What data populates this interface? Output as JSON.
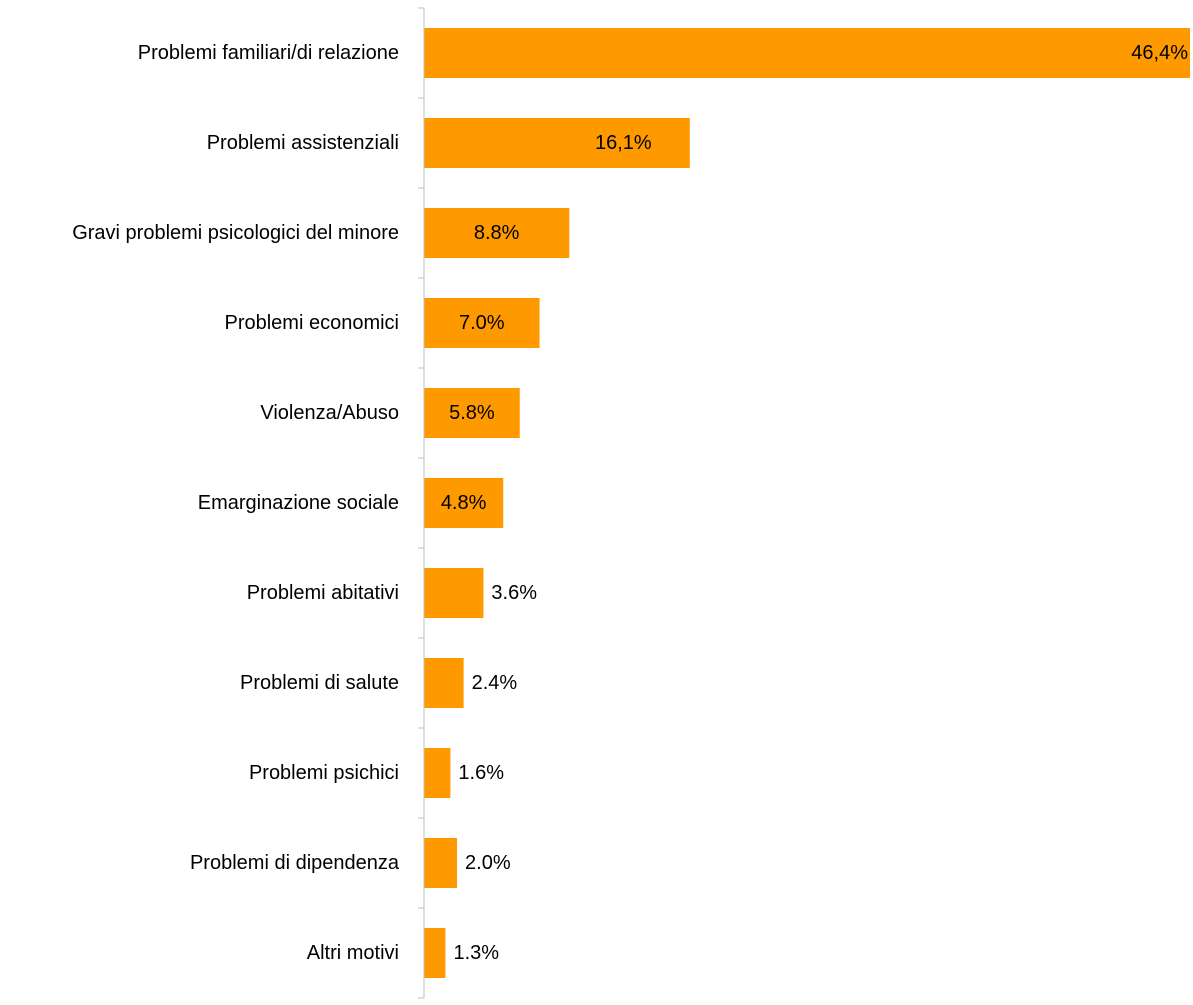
{
  "chart_data": {
    "type": "bar",
    "orientation": "horizontal",
    "title": "",
    "xlabel": "",
    "ylabel": "",
    "categories": [
      "Problemi familiari/di relazione",
      "Problemi assistenziali",
      "Gravi problemi psicologici del minore",
      "Problemi economici",
      "Violenza/Abuso",
      "Emarginazione sociale",
      "Problemi abitativi",
      "Problemi di salute",
      "Problemi psichici",
      "Problemi di dipendenza",
      "Altri motivi"
    ],
    "values": [
      46.4,
      16.1,
      8.8,
      7.0,
      5.8,
      4.8,
      3.6,
      2.4,
      1.6,
      2.0,
      1.3
    ],
    "value_labels": [
      "46,4%",
      "16,1%",
      "8.8%",
      "7.0%",
      "5.8%",
      "4.8%",
      "3.6%",
      "2.4%",
      "1.6%",
      "2.0%",
      "1.3%"
    ],
    "unit": "%",
    "bar_color": "#ff9900",
    "grid": false,
    "legend": "none",
    "xlim": [
      0,
      46.4
    ]
  }
}
